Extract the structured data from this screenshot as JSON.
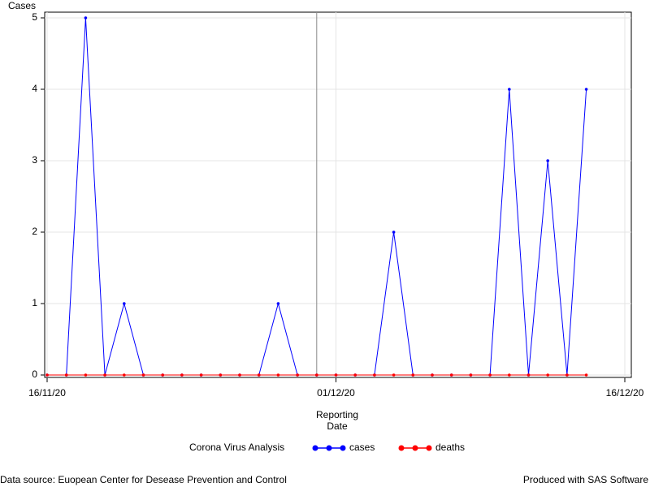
{
  "chart_data": {
    "type": "line",
    "y_label": "Cases",
    "x_label": "Reporting Date",
    "legend_title": "Corona Virus Analysis",
    "x": [
      "16/11/20",
      "17/11/20",
      "18/11/20",
      "19/11/20",
      "20/11/20",
      "21/11/20",
      "22/11/20",
      "23/11/20",
      "24/11/20",
      "25/11/20",
      "26/11/20",
      "27/11/20",
      "28/11/20",
      "29/11/20",
      "30/11/20",
      "01/12/20",
      "02/12/20",
      "03/12/20",
      "04/12/20",
      "05/12/20",
      "06/12/20",
      "07/12/20",
      "08/12/20",
      "09/12/20",
      "10/12/20",
      "11/12/20",
      "12/12/20",
      "13/12/20",
      "14/12/20"
    ],
    "series": [
      {
        "name": "cases",
        "color": "#0000ff",
        "values": [
          0,
          0,
          5,
          0,
          1,
          0,
          0,
          0,
          0,
          0,
          0,
          0,
          1,
          0,
          0,
          0,
          0,
          0,
          2,
          0,
          0,
          0,
          0,
          0,
          4,
          0,
          3,
          0,
          4
        ]
      },
      {
        "name": "deaths",
        "color": "#ff0000",
        "values": [
          0,
          0,
          0,
          0,
          0,
          0,
          0,
          0,
          0,
          0,
          0,
          0,
          0,
          0,
          0,
          0,
          0,
          0,
          0,
          0,
          0,
          0,
          0,
          0,
          0,
          0,
          0,
          0,
          0
        ]
      }
    ],
    "reference_line_x": "30/11/20",
    "xlim": [
      "16/11/20",
      "16/12/20"
    ],
    "xticks": [
      "16/11/20",
      "01/12/20",
      "16/12/20"
    ],
    "ylim": [
      0,
      5
    ],
    "yticks": [
      0,
      1,
      2,
      3,
      4,
      5
    ],
    "grid": true,
    "footnote_left": "Data source: Euopean Center for Desease Prevention and Control",
    "footnote_right": "Produced with SAS Software"
  }
}
